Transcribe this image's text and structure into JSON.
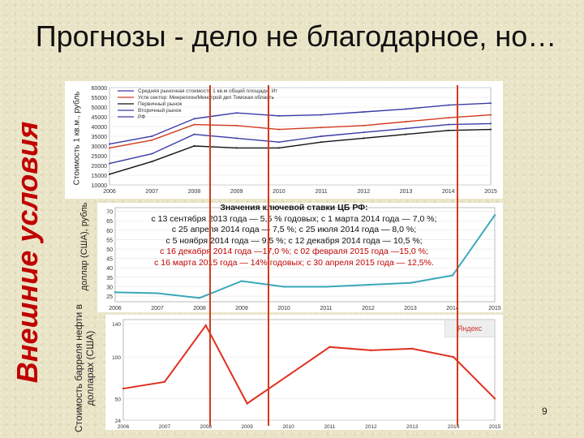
{
  "slide": {
    "title": "Прогнозы - дело не благодарное, но…",
    "side_title": "Внешние условия",
    "page_number": "9"
  },
  "top_chart": {
    "ylabel": "Стоимость 1 кв.м., рубль",
    "legend": [
      "Средняя рыночная стоимость 1 кв.м общей площади: Ит",
      "Уств сектор: Минрегион/Минстрой дкп Томская область",
      "Первичный рынок",
      "Вторичный рынок",
      "РФ"
    ],
    "colors": {
      "primary": "#3a3aa8",
      "secondary": "#111111",
      "red": "#d23a1e"
    }
  },
  "middle_chart": {
    "ylabel": "доллар (США), рубль",
    "colors": {
      "line": "#3aa8b8",
      "spike": "#d23a1e"
    }
  },
  "bottom_chart": {
    "ylabel": "Стоимость барреля нефти в долларах (США)",
    "logo": "Яндекс",
    "colors": {
      "line": "#e03020"
    }
  },
  "rates": {
    "header": "Значения ключевой ставки ЦБ РФ:",
    "line1": "с 13 сентября 2013 года — 5,5 % годовых; с 1 марта 2014 года — 7,0 %;",
    "line2": "с 25 апреля 2014 года — 7,5 %; с 25 июля 2014 года — 8,0 %;",
    "line3": "с 5 ноября 2014 года — 9,5 %; с 12 декабря 2014 года — 10,5 %;",
    "line4": "с 16 декабря 2014 года —17,0 %; с 02 февраля 2015 года —15,0 %;",
    "line5": "с 16 марта 2015 года — 14% годовых; с 30 апреля 2015 года — 12,5%."
  },
  "chart_data": [
    {
      "type": "line",
      "x": [
        "2006",
        "2007",
        "2008",
        "2009",
        "2010",
        "2011",
        "2012",
        "2013",
        "2014",
        "2015"
      ],
      "yticks": [
        "10000",
        "15000",
        "20000",
        "25000",
        "30000",
        "35000",
        "40000",
        "45000",
        "50000",
        "55000",
        "60000"
      ],
      "series": [
        {
          "name": "Средняя рыночная стоимость 1 кв.м общей площади: Ит",
          "values": [
            31000,
            35000,
            44000,
            47000,
            45500,
            46000,
            47500,
            49000,
            51000,
            52000
          ]
        },
        {
          "name": "Уств сектор: Минрегион/Минстрой дкп Томская область",
          "values": [
            29000,
            33000,
            41000,
            40500,
            38500,
            39500,
            40500,
            42500,
            44500,
            46000
          ]
        },
        {
          "name": "Первичный рынок",
          "values": [
            15500,
            22000,
            30000,
            29000,
            29000,
            32000,
            34000,
            36000,
            38000,
            38500
          ]
        },
        {
          "name": "Вторичный рынок",
          "values": [
            21000,
            26000,
            36000,
            34000,
            32000,
            35000,
            37000,
            39000,
            41000,
            41500
          ]
        }
      ],
      "ylim": [
        10000,
        60000
      ]
    },
    {
      "type": "line",
      "x": [
        "2006",
        "2007",
        "2008",
        "2009",
        "2010",
        "2011",
        "2012",
        "2013",
        "2014",
        "2015"
      ],
      "yticks": [
        "25",
        "30",
        "35",
        "40",
        "45",
        "50",
        "55",
        "60",
        "65",
        "70"
      ],
      "series": [
        {
          "name": "доллар (США)",
          "values": [
            27,
            26.5,
            24,
            33,
            30,
            30,
            31,
            32,
            36,
            68
          ]
        }
      ],
      "ylim": [
        22,
        72
      ]
    },
    {
      "type": "line",
      "x": [
        "2006",
        "2007",
        "2008",
        "2009",
        "2010",
        "2011",
        "2012",
        "2013",
        "2014",
        "2015"
      ],
      "yticks": [
        "24",
        "50",
        "100",
        "140"
      ],
      "series": [
        {
          "name": "нефть",
          "values": [
            62,
            70,
            138,
            44,
            78,
            112,
            108,
            110,
            100,
            50
          ]
        }
      ],
      "ylim": [
        24,
        145
      ]
    }
  ]
}
